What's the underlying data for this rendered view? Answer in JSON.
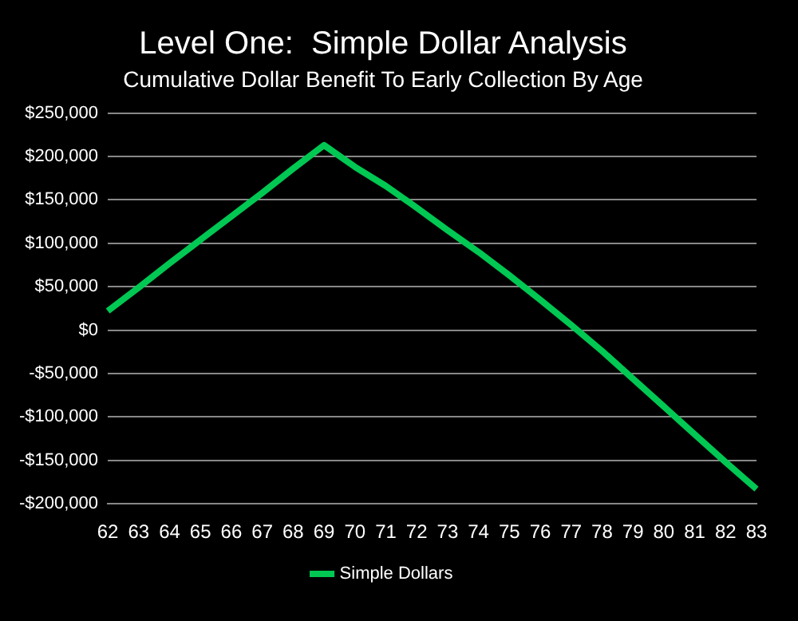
{
  "chart_data": {
    "type": "line",
    "title": "Level One:  Simple Dollar Analysis",
    "subtitle": "Cumulative Dollar Benefit To Early Collection By Age",
    "categories": [
      "62",
      "63",
      "64",
      "65",
      "66",
      "67",
      "68",
      "69",
      "70",
      "71",
      "72",
      "73",
      "74",
      "75",
      "76",
      "77",
      "78",
      "79",
      "80",
      "81",
      "82",
      "83"
    ],
    "series": [
      {
        "name": "Simple Dollars",
        "color": "#00c853",
        "values": [
          22000,
          49000,
          77000,
          104000,
          131000,
          158000,
          186000,
          213000,
          188000,
          166000,
          141000,
          115000,
          90000,
          63000,
          35000,
          6000,
          -24000,
          -56000,
          -88000,
          -120000,
          -152000,
          -183000
        ]
      }
    ],
    "ylim": [
      -200000,
      250000
    ],
    "yticks": [
      {
        "value": -200000,
        "label": "-$200,000"
      },
      {
        "value": -150000,
        "label": "-$150,000"
      },
      {
        "value": -100000,
        "label": "-$100,000"
      },
      {
        "value": -50000,
        "label": "-$50,000"
      },
      {
        "value": 0,
        "label": "$0"
      },
      {
        "value": 50000,
        "label": "$50,000"
      },
      {
        "value": 100000,
        "label": "$100,000"
      },
      {
        "value": 150000,
        "label": "$150,000"
      },
      {
        "value": 200000,
        "label": "$200,000"
      },
      {
        "value": 250000,
        "label": "$250,000"
      }
    ],
    "grid": "y",
    "legend": "bottom",
    "marker": "none",
    "line_style": "solid"
  }
}
